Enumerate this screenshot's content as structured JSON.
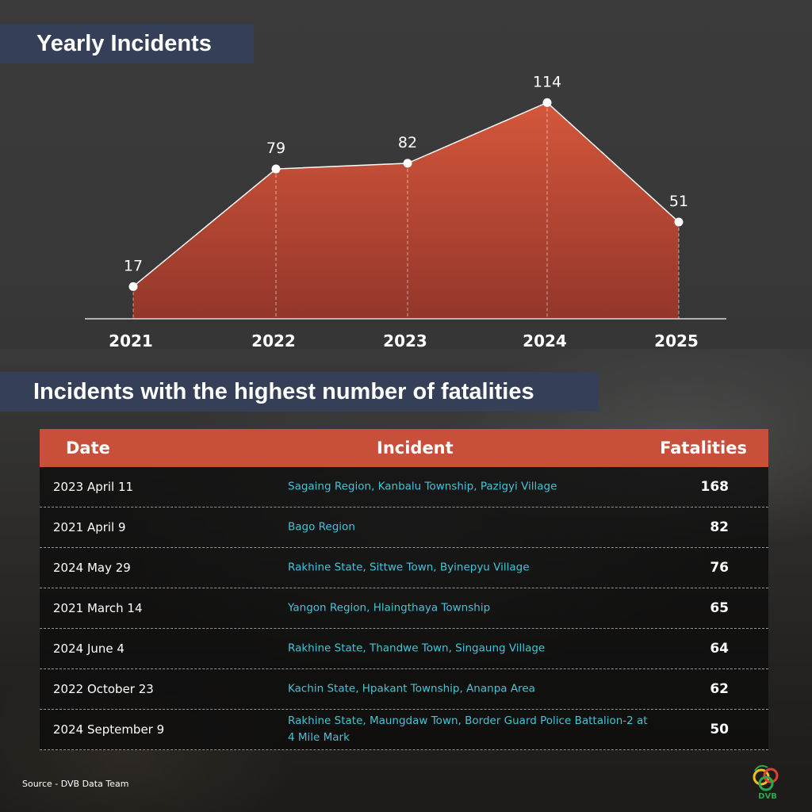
{
  "titles": {
    "yearly": "Yearly Incidents",
    "top_incidents": "Incidents with the highest number of fatalities"
  },
  "chart_data": {
    "type": "area",
    "title": "Yearly Incidents",
    "categories": [
      "2021",
      "2022",
      "2023",
      "2024",
      "2025"
    ],
    "values": [
      17,
      79,
      82,
      114,
      51
    ],
    "data_labels": [
      "17",
      "79",
      "82",
      "114",
      "51"
    ],
    "xlabel": "",
    "ylabel": "",
    "ylim": [
      0,
      120
    ],
    "grid": false,
    "colors": {
      "fill_top": "#d0543a",
      "fill_bottom": "#8e3426",
      "line": "#ffffff",
      "markers": "#ffffff"
    }
  },
  "table": {
    "headers": {
      "date": "Date",
      "incident": "Incident",
      "fatalities": "Fatalities"
    },
    "rows": [
      {
        "date": "2023 April 11",
        "incident": "Sagaing Region, Kanbalu Township, Pazigyi Village",
        "fatalities": "168"
      },
      {
        "date": "2021 April 9",
        "incident": "Bago Region",
        "fatalities": "82"
      },
      {
        "date": "2024 May 29",
        "incident": "Rakhine State, Sittwe Town, Byinepyu Village",
        "fatalities": "76"
      },
      {
        "date": "2021 March 14",
        "incident": "Yangon Region, Hlaingthaya Township",
        "fatalities": "65"
      },
      {
        "date": "2024 June 4",
        "incident": "Rakhine State, Thandwe Town, Singaung Village",
        "fatalities": "64"
      },
      {
        "date": "2022 October 23",
        "incident": "Kachin State, Hpakant Township, Ananpa Area",
        "fatalities": "62"
      },
      {
        "date": "2024 September 9",
        "incident": "Rakhine State, Maungdaw Town, Border Guard Police Battalion-2 at 4 Mile Mark",
        "fatalities": "50"
      }
    ]
  },
  "footer": {
    "source": "Source - DVB Data Team",
    "logo_icon": "dvb-logo-icon",
    "logo_text": "DVB"
  },
  "colors": {
    "title_band": "#354058",
    "table_header": "#c8503a",
    "incident_text": "#44c3d6"
  }
}
